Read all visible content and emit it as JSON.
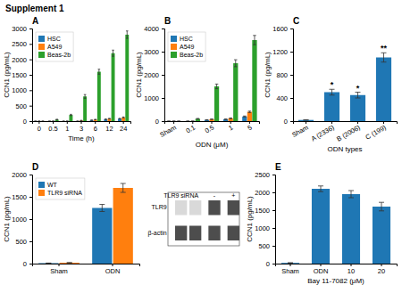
{
  "title": "Supplement 1",
  "chart_data": [
    {
      "type": "bar",
      "title": "A",
      "xlabel": "Time (h)",
      "ylabel": "CCN1 (pg/mL)",
      "categories": [
        "0",
        "0.5",
        "1",
        "3",
        "6",
        "12",
        "24"
      ],
      "series": [
        {
          "name": "HSC",
          "values": [
            0,
            0,
            0,
            0,
            30,
            60,
            80
          ],
          "errors": [
            0,
            0,
            0,
            0,
            5,
            8,
            10
          ]
        },
        {
          "name": "A549",
          "values": [
            0,
            0,
            0,
            20,
            50,
            80,
            120
          ],
          "errors": [
            0,
            0,
            0,
            5,
            8,
            10,
            15
          ]
        },
        {
          "name": "Beas-2b",
          "values": [
            0,
            50,
            200,
            800,
            1600,
            2200,
            2800
          ],
          "errors": [
            0,
            10,
            20,
            60,
            80,
            100,
            120
          ]
        }
      ],
      "ylim": [
        0,
        3000
      ],
      "yticks": [
        0,
        500,
        1000,
        1500,
        2000,
        2500,
        3000
      ],
      "legend": "upper left",
      "grid": false
    },
    {
      "type": "bar",
      "title": "B",
      "xlabel": "ODN (μM)",
      "ylabel": "CCN1 (pg/mL)",
      "categories": [
        "Sham",
        "0.1",
        "0.5",
        "1",
        "5"
      ],
      "series": [
        {
          "name": "HSC",
          "values": [
            0,
            0,
            50,
            80,
            200
          ],
          "errors": [
            0,
            0,
            8,
            10,
            20
          ]
        },
        {
          "name": "A549",
          "values": [
            0,
            0,
            80,
            120,
            400
          ],
          "errors": [
            0,
            0,
            10,
            15,
            30
          ]
        },
        {
          "name": "Beas-2b",
          "values": [
            0,
            100,
            1500,
            2500,
            3500
          ],
          "errors": [
            0,
            15,
            100,
            150,
            200
          ]
        }
      ],
      "ylim": [
        0,
        4000
      ],
      "yticks": [
        0,
        1000,
        2000,
        3000,
        4000
      ],
      "legend": "upper left",
      "grid": false
    },
    {
      "type": "bar",
      "title": "C",
      "xlabel": "ODN types",
      "ylabel": "CCN1 (pg/mL)",
      "categories": [
        "Sham",
        "A (2336)",
        "B (2006)",
        "C (199)"
      ],
      "values": [
        20,
        500,
        450,
        1100
      ],
      "errors": [
        5,
        50,
        50,
        80
      ],
      "annotations": [
        {
          "category": "A (2336)",
          "text": "*"
        },
        {
          "category": "B (2006)",
          "text": "*"
        },
        {
          "category": "C (199)",
          "text": "**"
        }
      ],
      "ylim": [
        0,
        1600
      ],
      "yticks": [
        0,
        400,
        800,
        1200,
        1600
      ],
      "grid": false
    },
    {
      "type": "bar",
      "title": "D",
      "ylabel": "CCN1 (pg/mL)",
      "categories": [
        "Sham",
        "ODN"
      ],
      "series": [
        {
          "name": "WT",
          "values": [
            10,
            1250
          ],
          "errors": [
            2,
            80
          ]
        },
        {
          "name": "TLR9 siRNA",
          "values": [
            20,
            1700
          ],
          "errors": [
            3,
            100
          ]
        }
      ],
      "annotations": [
        {
          "text": "TLR9 siRNA"
        },
        {
          "text": "-"
        },
        {
          "text": "+"
        },
        {
          "text": "TLR9"
        },
        {
          "text": "β-actin"
        }
      ],
      "ylim": [
        0,
        2000
      ],
      "yticks": [
        0,
        500,
        1000,
        1500,
        2000
      ],
      "legend": "upper left",
      "grid": false
    },
    {
      "type": "bar",
      "title": "E",
      "xlabel": "Bay 11-7082 (μM)",
      "ylabel": "CCN1 (pg/mL)",
      "categories": [
        "Sham",
        "ODN",
        "10",
        "20"
      ],
      "values": [
        20,
        2100,
        1950,
        1600
      ],
      "errors": [
        5,
        80,
        100,
        120
      ],
      "ylim": [
        0,
        2500
      ],
      "yticks": [
        0,
        500,
        1000,
        1500,
        2000,
        2500
      ],
      "grid": false
    }
  ]
}
